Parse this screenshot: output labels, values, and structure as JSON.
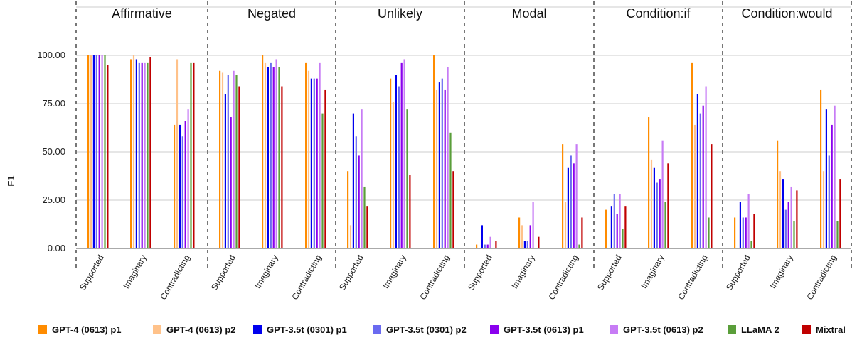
{
  "chart_data": {
    "type": "bar",
    "ylabel": "F1",
    "ylim": [
      0,
      125
    ],
    "yticks": [
      "0.00",
      "25.00",
      "50.00",
      "75.00",
      "100.00"
    ],
    "ytick_values": [
      0,
      25,
      50,
      75,
      100
    ],
    "grid": true,
    "legend_position": "bottom",
    "panels": [
      {
        "title": "Affirmative",
        "groups": [
          {
            "category": "Supported",
            "values": [
              100,
              100,
              100,
              100,
              100,
              100,
              100,
              95
            ]
          },
          {
            "category": "Imaginary",
            "values": [
              98,
              100,
              98,
              96,
              96,
              96,
              96,
              99
            ]
          },
          {
            "category": "Contradicting",
            "values": [
              64,
              98,
              64,
              58,
              66,
              72,
              96,
              96
            ]
          }
        ]
      },
      {
        "title": "Negated",
        "groups": [
          {
            "category": "Supported",
            "values": [
              92,
              91,
              80,
              90,
              68,
              92,
              90,
              84
            ]
          },
          {
            "category": "Imaginary",
            "values": [
              100,
              96,
              94,
              96,
              94,
              98,
              94,
              84
            ]
          },
          {
            "category": "Contradicting",
            "values": [
              96,
              92,
              88,
              88,
              88,
              96,
              70,
              82
            ]
          }
        ]
      },
      {
        "title": "Unlikely",
        "groups": [
          {
            "category": "Supported",
            "values": [
              40,
              12,
              70,
              58,
              48,
              72,
              32,
              22
            ]
          },
          {
            "category": "Imaginary",
            "values": [
              88,
              76,
              90,
              84,
              96,
              98,
              72,
              38
            ]
          },
          {
            "category": "Contradicting",
            "values": [
              100,
              82,
              86,
              88,
              82,
              94,
              60,
              40
            ]
          }
        ]
      },
      {
        "title": "Modal",
        "groups": [
          {
            "category": "Supported",
            "values": [
              2,
              0,
              12,
              2,
              2,
              6,
              0,
              4
            ]
          },
          {
            "category": "Imaginary",
            "values": [
              16,
              12,
              4,
              4,
              12,
              24,
              0,
              6
            ]
          },
          {
            "category": "Contradicting",
            "values": [
              54,
              24,
              42,
              48,
              44,
              54,
              2,
              16
            ]
          }
        ]
      },
      {
        "title": "Condition:if",
        "groups": [
          {
            "category": "Supported",
            "values": [
              20,
              0,
              22,
              28,
              18,
              28,
              10,
              22
            ]
          },
          {
            "category": "Imaginary",
            "values": [
              68,
              46,
              42,
              34,
              36,
              56,
              24,
              44
            ]
          },
          {
            "category": "Contradicting",
            "values": [
              96,
              64,
              80,
              70,
              74,
              84,
              16,
              54
            ]
          }
        ]
      },
      {
        "title": "Condition:would",
        "groups": [
          {
            "category": "Supported",
            "values": [
              16,
              0,
              24,
              16,
              16,
              28,
              4,
              18
            ]
          },
          {
            "category": "Imaginary",
            "values": [
              56,
              40,
              36,
              20,
              24,
              32,
              14,
              30
            ]
          },
          {
            "category": "Contradicting",
            "values": [
              82,
              40,
              72,
              48,
              64,
              74,
              14,
              36
            ]
          }
        ]
      }
    ],
    "series": [
      {
        "name": "GPT-4 (0613) p1",
        "color": "#FF8C00"
      },
      {
        "name": "GPT-4 (0613) p2",
        "color": "#FFC28A"
      },
      {
        "name": "GPT-3.5t (0301) p1",
        "color": "#0000EE"
      },
      {
        "name": "GPT-3.5t (0301) p2",
        "color": "#6A6AF0"
      },
      {
        "name": "GPT-3.5t (0613) p1",
        "color": "#8A00EE"
      },
      {
        "name": "GPT-3.5t (0613) p2",
        "color": "#C77CF5"
      },
      {
        "name": "LLaMA 2",
        "color": "#5A9E3A"
      },
      {
        "name": "Mixtral",
        "color": "#C00000"
      }
    ]
  }
}
